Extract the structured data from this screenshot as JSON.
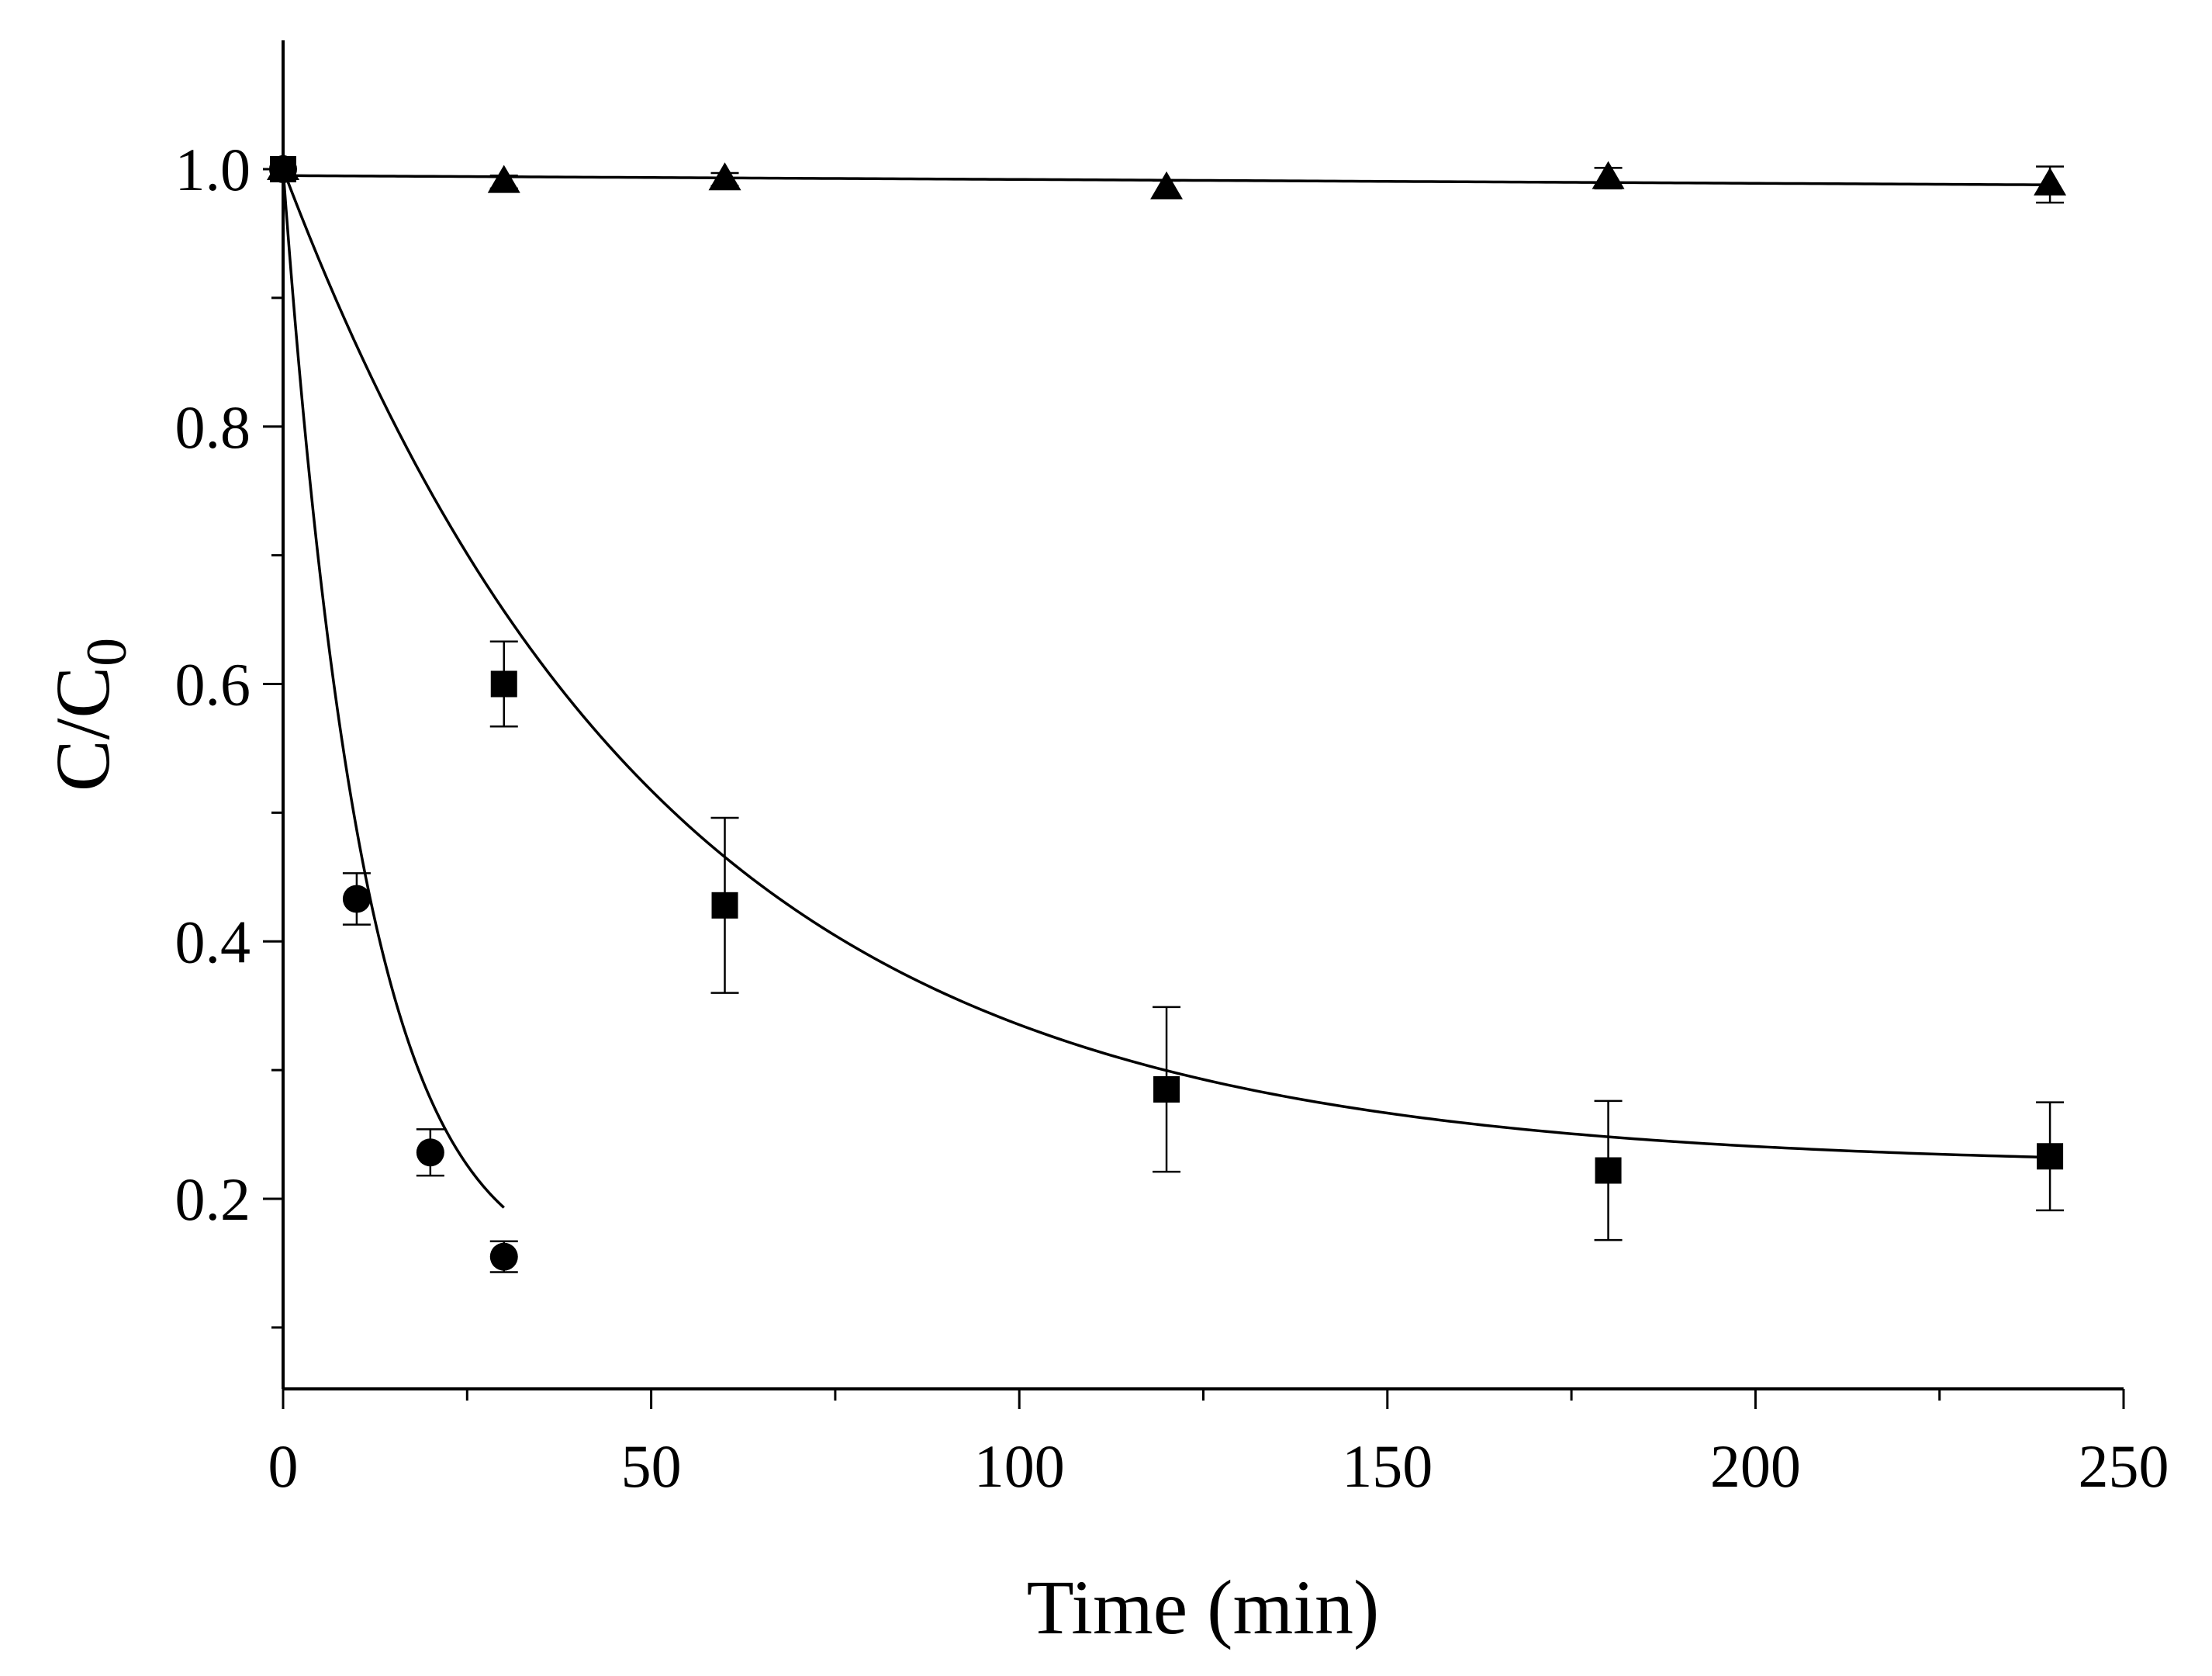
{
  "chart_data": {
    "type": "scatter",
    "title": "",
    "xlabel": "Time (min)",
    "ylabel_main": "C/C",
    "ylabel_sub": "0",
    "xlim": [
      0,
      250
    ],
    "ylim": [
      0.05,
      1.1
    ],
    "x_ticks": [
      0,
      50,
      100,
      150,
      200,
      250
    ],
    "x_tick_labels": [
      "0",
      "50",
      "100",
      "150",
      "200",
      "250"
    ],
    "y_ticks": [
      0.2,
      0.4,
      0.6,
      0.8,
      1.0
    ],
    "y_tick_labels": [
      "0.2",
      "0.4",
      "0.6",
      "0.8",
      "1.0"
    ],
    "series": [
      {
        "name": "triangle",
        "marker": "triangle",
        "x": [
          0,
          30,
          60,
          120,
          180,
          240
        ],
        "y": [
          1.0,
          0.99,
          0.992,
          0.985,
          0.993,
          0.988
        ],
        "err": [
          0,
          0.005,
          0.005,
          0.006,
          0.008,
          0.014
        ],
        "fit": {
          "kind": "linear",
          "a": 0.995,
          "b": -3e-05
        }
      },
      {
        "name": "square",
        "marker": "square",
        "x": [
          0,
          30,
          60,
          120,
          180,
          240
        ],
        "y": [
          1.0,
          0.6,
          0.428,
          0.285,
          0.222,
          0.233
        ],
        "err": [
          0,
          0.033,
          0.068,
          0.064,
          0.054,
          0.042
        ],
        "fit": {
          "kind": "exp",
          "c": 0.225,
          "a": 0.775,
          "k": 0.0195
        }
      },
      {
        "name": "circle",
        "marker": "circle",
        "x": [
          0,
          10,
          20,
          30
        ],
        "y": [
          1.0,
          0.433,
          0.236,
          0.155
        ],
        "err": [
          0,
          0.02,
          0.018,
          0.012
        ],
        "fit": {
          "kind": "exp",
          "c": 0.135,
          "a": 0.865,
          "k": 0.09,
          "xmax": 30
        }
      }
    ]
  }
}
